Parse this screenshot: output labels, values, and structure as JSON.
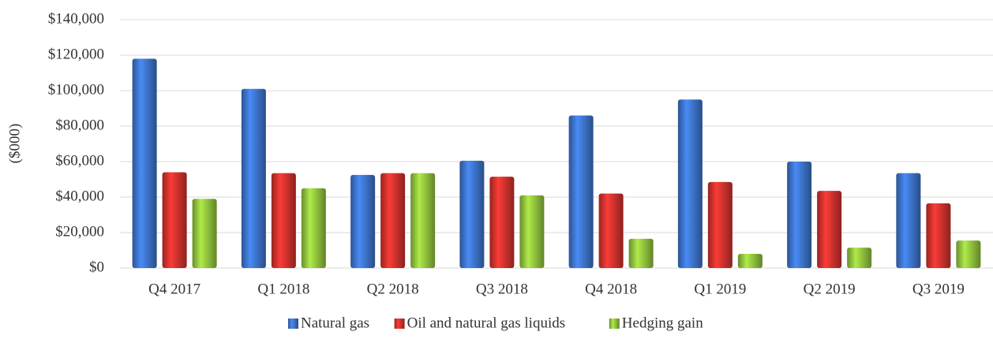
{
  "chart_data": {
    "type": "bar",
    "y_label": "($000)",
    "categories": [
      "Q4 2017",
      "Q1 2018",
      "Q2 2018",
      "Q3 2018",
      "Q4 2018",
      "Q1 2019",
      "Q2 2019",
      "Q3 2019"
    ],
    "series": [
      {
        "name": "Natural gas",
        "color": "#3a6fc4",
        "values": [
          118000,
          101000,
          52500,
          60500,
          86000,
          95000,
          60000,
          53500
        ]
      },
      {
        "name": "Oil and natural gas liquids",
        "color": "#c9302c",
        "values": [
          54000,
          53500,
          53500,
          51500,
          42000,
          48500,
          43500,
          36500
        ]
      },
      {
        "name": "Hedging gain",
        "color": "#8cbc3a",
        "values": [
          39000,
          45000,
          53500,
          41000,
          16500,
          8000,
          11500,
          15500
        ]
      }
    ],
    "ylim": [
      0,
      140000
    ],
    "yticks": [
      {
        "value": 0,
        "label": "$0"
      },
      {
        "value": 20000,
        "label": "$20,000"
      },
      {
        "value": 40000,
        "label": "$40,000"
      },
      {
        "value": 60000,
        "label": "$60,000"
      },
      {
        "value": 80000,
        "label": "$80,000"
      },
      {
        "value": 100000,
        "label": "$100,000"
      },
      {
        "value": 120000,
        "label": "$120,000"
      },
      {
        "value": 140000,
        "label": "$140,000"
      }
    ],
    "grid": true,
    "legend": "bottom"
  }
}
